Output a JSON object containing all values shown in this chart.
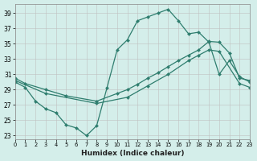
{
  "xlabel": "Humidex (Indice chaleur)",
  "bg_color": "#d4eeea",
  "grid_color": "#c0c0c0",
  "line_color": "#2e7d6e",
  "xlim": [
    0,
    23
  ],
  "ylim": [
    22.5,
    40.2
  ],
  "xtick_labels": [
    "0",
    "1",
    "2",
    "3",
    "4",
    "5",
    "6",
    "7",
    "8",
    "9",
    "10",
    "11",
    "12",
    "13",
    "14",
    "15",
    "16",
    "17",
    "18",
    "19",
    "20",
    "21",
    "22",
    "23"
  ],
  "xticks": [
    0,
    1,
    2,
    3,
    4,
    5,
    6,
    7,
    8,
    9,
    10,
    11,
    12,
    13,
    14,
    15,
    16,
    17,
    18,
    19,
    20,
    21,
    22,
    23
  ],
  "yticks": [
    23,
    25,
    27,
    29,
    31,
    33,
    35,
    37,
    39
  ],
  "curve1_x": [
    0,
    1,
    2,
    3,
    4,
    5,
    6,
    7,
    8,
    9,
    10,
    11,
    12,
    13,
    14,
    15,
    16,
    17,
    18,
    19,
    20,
    21,
    22,
    23
  ],
  "curve1_y": [
    30.0,
    29.3,
    27.5,
    26.5,
    26.0,
    24.4,
    24.0,
    23.0,
    24.3,
    29.2,
    34.2,
    35.5,
    38.0,
    38.5,
    39.0,
    39.5,
    38.0,
    36.3,
    36.5,
    35.2,
    31.0,
    32.8,
    30.7,
    30.0
  ],
  "diag1_x": [
    0,
    1,
    3,
    5,
    8,
    10,
    11,
    12,
    13,
    14,
    15,
    16,
    17,
    18,
    19,
    20,
    21,
    22,
    23
  ],
  "diag1_y": [
    30.5,
    29.8,
    29.0,
    28.2,
    27.5,
    28.5,
    29.0,
    29.7,
    30.5,
    31.2,
    32.0,
    32.8,
    33.5,
    34.2,
    35.3,
    35.2,
    33.8,
    30.5,
    30.2
  ],
  "diag2_x": [
    0,
    3,
    8,
    11,
    13,
    15,
    17,
    18,
    19,
    20,
    22,
    23
  ],
  "diag2_y": [
    30.2,
    28.5,
    27.2,
    28.0,
    29.5,
    31.0,
    32.8,
    33.5,
    34.2,
    34.0,
    29.8,
    29.3
  ]
}
